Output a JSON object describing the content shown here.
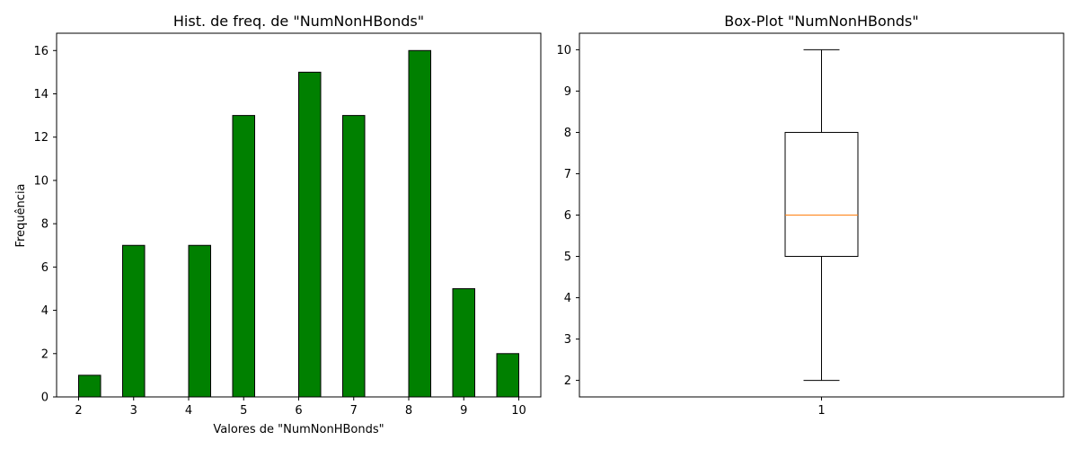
{
  "chart_data": [
    {
      "type": "bar",
      "title": "Hist. de freq. de \"NumNonHBonds\"",
      "xlabel": "Valores de \"NumNonHBonds\"",
      "ylabel": "Frequência",
      "bar_color": "#008000",
      "edge_color": "#000000",
      "xlim": [
        1.6,
        10.4
      ],
      "ylim": [
        0,
        16.8
      ],
      "xticks": [
        2,
        3,
        4,
        5,
        6,
        7,
        8,
        9,
        10
      ],
      "yticks": [
        0,
        2,
        4,
        6,
        8,
        10,
        12,
        14,
        16
      ],
      "bars": [
        {
          "x0": 2.0,
          "x1": 2.4,
          "value": 1
        },
        {
          "x0": 2.8,
          "x1": 3.2,
          "value": 7
        },
        {
          "x0": 4.0,
          "x1": 4.4,
          "value": 7
        },
        {
          "x0": 4.8,
          "x1": 5.2,
          "value": 13
        },
        {
          "x0": 6.0,
          "x1": 6.4,
          "value": 15
        },
        {
          "x0": 6.8,
          "x1": 7.2,
          "value": 13
        },
        {
          "x0": 8.0,
          "x1": 8.4,
          "value": 16
        },
        {
          "x0": 8.8,
          "x1": 9.2,
          "value": 5
        },
        {
          "x0": 9.6,
          "x1": 10.0,
          "value": 2
        }
      ]
    },
    {
      "type": "box",
      "title": "Box-Plot \"NumNonHBonds\"",
      "category": "1",
      "ylim": [
        1.6,
        10.4
      ],
      "yticks": [
        2,
        3,
        4,
        5,
        6,
        7,
        8,
        9,
        10
      ],
      "median_color": "#ff7f0e",
      "stats": {
        "min": 2,
        "q1": 5,
        "median": 6,
        "q3": 8,
        "max": 10
      }
    }
  ]
}
